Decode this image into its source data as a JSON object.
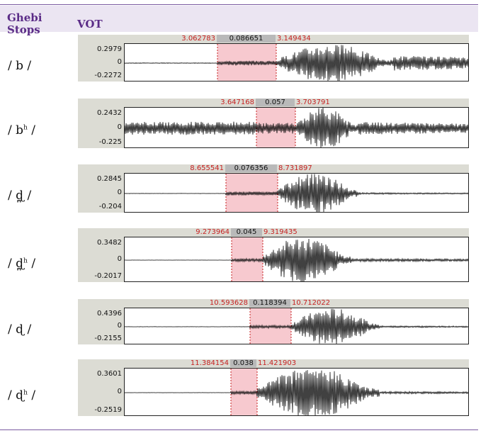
{
  "header": {
    "col_stops": "Ghebi\nStops",
    "col_vot": "VOT"
  },
  "rows": [
    {
      "label_base": "/ b /",
      "label_sup": "",
      "t_start": "3.062783",
      "duration": "0.086651",
      "t_end": "3.149434",
      "y_max": "0.2979",
      "y_zero": "0",
      "y_min": "-0.2272"
    },
    {
      "label_base": "/ b",
      "label_sup": "h",
      "t_start": "3.647168",
      "duration": "0.057",
      "t_end": "3.703791",
      "y_max": "0.2432",
      "y_zero": "0",
      "y_min": "-0.225"
    },
    {
      "label_base": "/ ɖ̪ /",
      "label_sup": "",
      "t_start": "8.655541",
      "duration": "0.076356",
      "t_end": "8.731897",
      "y_max": "0.2845",
      "y_zero": "0",
      "y_min": "-0.204"
    },
    {
      "label_base": "/ ɖ̪",
      "label_sup": "h",
      "t_start": "9.273964",
      "duration": "0.045",
      "t_end": "9.319435",
      "y_max": "0.3482",
      "y_zero": "0",
      "y_min": "-0.2017"
    },
    {
      "label_base": "/ ɖ /",
      "label_sup": "",
      "t_start": "10.593628",
      "duration": "0.118394",
      "t_end": "10.712022",
      "y_max": "0.4396",
      "y_zero": "0",
      "y_min": "-0.2155"
    },
    {
      "label_base": "/ ɖ",
      "label_sup": "h",
      "t_start": "11.384154",
      "duration": "0.038",
      "t_end": "11.421903",
      "y_max": "0.3601",
      "y_zero": "0",
      "y_min": "-0.2519"
    }
  ],
  "colors": {
    "header_bg": "#ebe5f2",
    "header_text": "#5b2c87",
    "selection": "#f7c9cf",
    "time_red": "#c62222",
    "panel_bg": "#dcdcd4"
  }
}
